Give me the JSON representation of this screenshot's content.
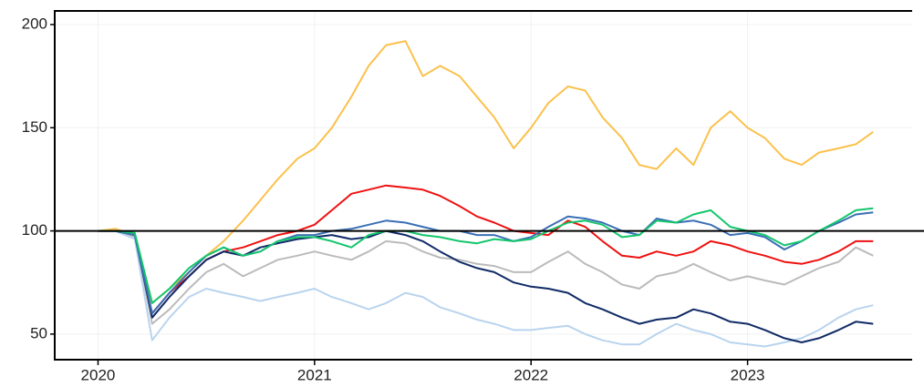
{
  "chart_data": {
    "type": "line",
    "x": [
      2020.0,
      2020.08,
      2020.17,
      2020.25,
      2020.33,
      2020.42,
      2020.5,
      2020.58,
      2020.67,
      2020.75,
      2020.83,
      2020.92,
      2021.0,
      2021.08,
      2021.17,
      2021.25,
      2021.33,
      2021.42,
      2021.5,
      2021.58,
      2021.67,
      2021.75,
      2021.83,
      2021.92,
      2022.0,
      2022.08,
      2022.17,
      2022.25,
      2022.33,
      2022.42,
      2022.5,
      2022.58,
      2022.67,
      2022.75,
      2022.83,
      2022.92,
      2023.0,
      2023.08,
      2023.17,
      2023.25,
      2023.33,
      2023.42,
      2023.5,
      2023.58
    ],
    "series": [
      {
        "color": "#fbc14c",
        "values": [
          100,
          101,
          98,
          65,
          72,
          80,
          88,
          95,
          105,
          115,
          125,
          135,
          140,
          150,
          165,
          180,
          190,
          192,
          175,
          180,
          175,
          165,
          155,
          140,
          150,
          162,
          170,
          168,
          155,
          145,
          132,
          130,
          140,
          132,
          150,
          158,
          150,
          145,
          135,
          132,
          138,
          140,
          142,
          148
        ]
      },
      {
        "color": "#ee1111",
        "values": [
          100,
          100,
          98,
          60,
          70,
          78,
          86,
          90,
          92,
          95,
          98,
          100,
          103,
          110,
          118,
          120,
          122,
          121,
          120,
          117,
          112,
          107,
          104,
          100,
          99,
          98,
          105,
          102,
          95,
          88,
          87,
          90,
          88,
          90,
          95,
          93,
          90,
          88,
          85,
          84,
          86,
          90,
          95,
          95
        ]
      },
      {
        "color": "#bbbbbb",
        "values": [
          100,
          100,
          97,
          55,
          62,
          72,
          80,
          84,
          78,
          82,
          86,
          88,
          90,
          88,
          86,
          90,
          95,
          94,
          90,
          87,
          86,
          84,
          83,
          80,
          80,
          85,
          90,
          84,
          80,
          74,
          72,
          78,
          80,
          84,
          80,
          76,
          78,
          76,
          74,
          78,
          82,
          85,
          92,
          88
        ]
      },
      {
        "color": "#b9d4ee",
        "values": [
          100,
          100,
          96,
          47,
          58,
          68,
          72,
          70,
          68,
          66,
          68,
          70,
          72,
          68,
          65,
          62,
          65,
          70,
          68,
          63,
          60,
          57,
          55,
          52,
          52,
          53,
          54,
          50,
          47,
          45,
          45,
          50,
          55,
          52,
          50,
          46,
          45,
          44,
          46,
          48,
          52,
          58,
          62,
          64
        ]
      },
      {
        "color": "#102a66",
        "values": [
          100,
          100,
          98,
          58,
          68,
          78,
          86,
          90,
          88,
          92,
          94,
          96,
          97,
          98,
          96,
          97,
          100,
          98,
          95,
          90,
          85,
          82,
          80,
          75,
          73,
          72,
          70,
          65,
          62,
          58,
          55,
          57,
          58,
          62,
          60,
          56,
          55,
          52,
          48,
          46,
          48,
          52,
          56,
          55
        ]
      },
      {
        "color": "#3a6fb5",
        "values": [
          100,
          100,
          98,
          60,
          70,
          80,
          88,
          92,
          88,
          90,
          95,
          98,
          98,
          100,
          101,
          103,
          105,
          104,
          102,
          100,
          100,
          98,
          98,
          95,
          97,
          102,
          107,
          106,
          104,
          100,
          98,
          106,
          104,
          105,
          103,
          98,
          99,
          97,
          91,
          95,
          100,
          104,
          108,
          109
        ]
      },
      {
        "color": "#13c66c",
        "values": [
          100,
          100,
          99,
          65,
          72,
          82,
          88,
          92,
          88,
          90,
          95,
          97,
          97,
          95,
          92,
          98,
          100,
          100,
          98,
          97,
          95,
          94,
          96,
          95,
          96,
          100,
          104,
          105,
          103,
          97,
          98,
          105,
          104,
          108,
          110,
          102,
          100,
          98,
          93,
          95,
          100,
          105,
          110,
          111
        ]
      }
    ],
    "xlim": [
      2019.8,
      2023.76
    ],
    "xticks": [
      2020,
      2021,
      2022,
      2023
    ],
    "ylim": [
      37.6,
      206.6
    ],
    "yticks": [
      50,
      100,
      150,
      200
    ],
    "hline": 100,
    "grid": true
  }
}
